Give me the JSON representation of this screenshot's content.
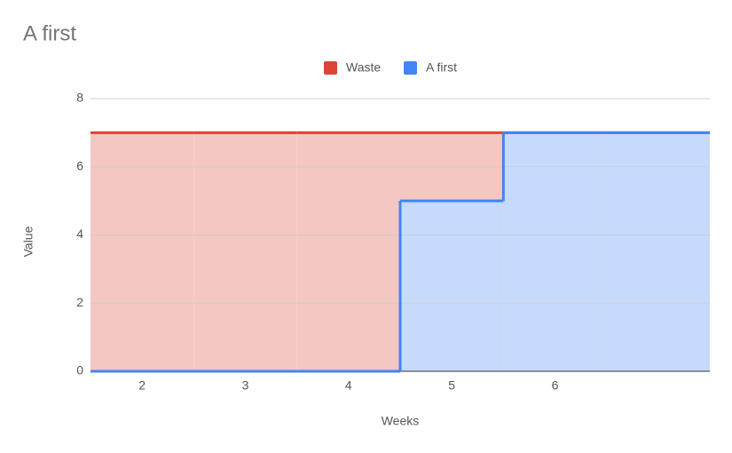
{
  "chart_data": {
    "type": "stepped-area",
    "title": "A first",
    "x_label": "Weeks",
    "y_label": "Value",
    "x": [
      2,
      3,
      4,
      5,
      6,
      7
    ],
    "xlim": [
      1.5,
      7.5
    ],
    "xticks": [
      2,
      3,
      4,
      5,
      6
    ],
    "ylim": [
      0,
      8
    ],
    "yticks": [
      0,
      2,
      4,
      6,
      8
    ],
    "grid": true,
    "legend": "top",
    "series": [
      {
        "name": "Waste",
        "color": "#db4437",
        "values": [
          7,
          7,
          7,
          7,
          7,
          7
        ]
      },
      {
        "name": "A first",
        "color": "#4285f4",
        "values": [
          0,
          0,
          0,
          5,
          7,
          7
        ]
      }
    ]
  }
}
